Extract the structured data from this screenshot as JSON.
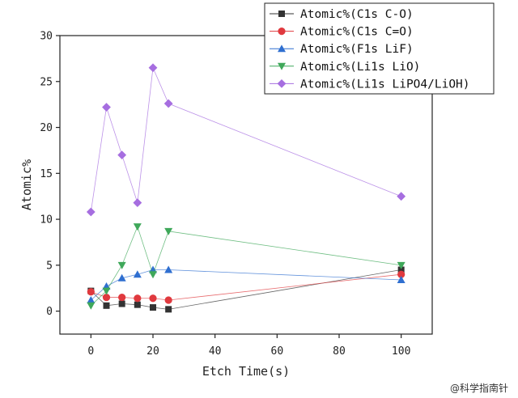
{
  "chart_data": {
    "type": "line",
    "title": "",
    "xlabel": "Etch Time(s)",
    "ylabel": "Atomic%",
    "xlim": [
      -10,
      110
    ],
    "ylim": [
      -2.5,
      30
    ],
    "xticks": [
      0,
      20,
      40,
      60,
      80,
      100
    ],
    "yticks": [
      0,
      5,
      10,
      15,
      20,
      25,
      30
    ],
    "grid": false,
    "legend_position": "top-right",
    "series": [
      {
        "name": "Atomic%(C1s C-O)",
        "color": "#333333",
        "marker": "square",
        "x": [
          0,
          5,
          10,
          15,
          20,
          25,
          100
        ],
        "y": [
          2.2,
          0.6,
          0.8,
          0.7,
          0.4,
          0.2,
          4.5
        ]
      },
      {
        "name": "Atomic%(C1s C=O)",
        "color": "#e0393e",
        "marker": "circle",
        "x": [
          0,
          5,
          10,
          15,
          20,
          25,
          100
        ],
        "y": [
          2.1,
          1.5,
          1.5,
          1.4,
          1.4,
          1.2,
          4.0
        ]
      },
      {
        "name": "Atomic%(F1s LiF)",
        "color": "#2f6fd0",
        "marker": "triangle-up",
        "x": [
          0,
          5,
          10,
          15,
          20,
          25,
          100
        ],
        "y": [
          1.2,
          2.7,
          3.6,
          4.0,
          4.5,
          4.5,
          3.4
        ]
      },
      {
        "name": "Atomic%(Li1s LiO)",
        "color": "#3fa85a",
        "marker": "triangle-down",
        "x": [
          0,
          5,
          10,
          15,
          20,
          25,
          100
        ],
        "y": [
          0.6,
          2.2,
          5.0,
          9.2,
          4.0,
          8.7,
          5.0
        ]
      },
      {
        "name": "Atomic%(Li1s LiPO4/LiOH)",
        "color": "#a66ee0",
        "marker": "diamond",
        "x": [
          0,
          5,
          10,
          15,
          20,
          25,
          100
        ],
        "y": [
          10.8,
          22.2,
          17.0,
          11.8,
          26.5,
          22.6,
          12.5
        ]
      }
    ]
  },
  "watermark": {
    "text": "@科学指南针"
  }
}
